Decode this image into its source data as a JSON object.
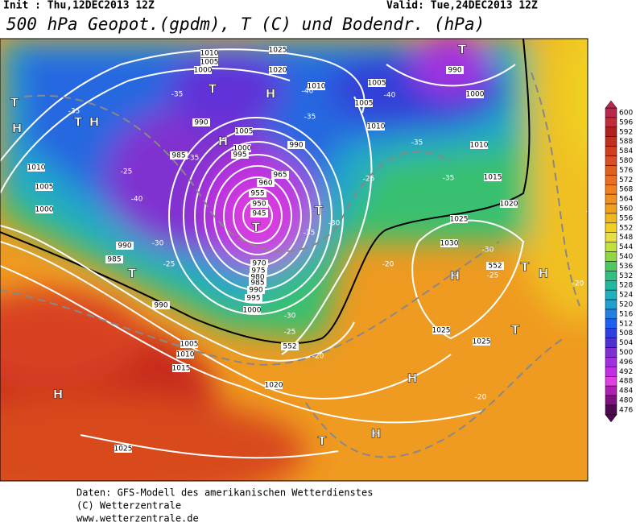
{
  "header": {
    "init": "Init : Thu,12DEC2013 12Z",
    "valid": "Valid: Tue,24DEC2013 12Z",
    "title": "500 hPa Geopot.(gpdm), T (C) und Bodendr. (hPa)"
  },
  "colorbar": {
    "labels": [
      600,
      596,
      592,
      588,
      584,
      580,
      576,
      572,
      568,
      564,
      560,
      556,
      552,
      548,
      544,
      540,
      536,
      532,
      528,
      524,
      520,
      516,
      512,
      508,
      504,
      500,
      496,
      492,
      488,
      484,
      480,
      476
    ],
    "colors": [
      "#b8284c",
      "#c02c3c",
      "#b02020",
      "#c03020",
      "#d04020",
      "#d85028",
      "#e06020",
      "#e87020",
      "#f08020",
      "#f09020",
      "#f0a020",
      "#f0b820",
      "#f0d020",
      "#e8e040",
      "#c0e040",
      "#90d840",
      "#50c860",
      "#30c080",
      "#20b8a0",
      "#20b0c0",
      "#20a0d0",
      "#2080e0",
      "#2060f0",
      "#3040e0",
      "#5030d0",
      "#8030d0",
      "#a030e0",
      "#c030e0",
      "#e040e0",
      "#b020b0",
      "#801080",
      "#500850"
    ]
  },
  "map": {
    "isobar_labels": [
      "1025",
      "1020",
      "1010",
      "1005",
      "1005",
      "1010",
      "1000",
      "990",
      "1010",
      "1015",
      "1020",
      "1025",
      "1030",
      "1025",
      "1025",
      "1020",
      "1015",
      "1010",
      "1005",
      "1000",
      "995",
      "990",
      "985",
      "990",
      "1000",
      "1005",
      "1010",
      "985",
      "990",
      "1005",
      "1000",
      "995",
      "960",
      "955",
      "950",
      "945",
      "965",
      "990",
      "970",
      "975",
      "980",
      "985",
      "990",
      "1025",
      "1010",
      "1005",
      "1000",
      "552",
      "552"
    ],
    "temperature_labels": [
      "-35",
      "-35",
      "-40",
      "-40",
      "-35",
      "-25",
      "-40",
      "-35",
      "-25",
      "-30",
      "-35",
      "-30",
      "-25",
      "-20",
      "-30",
      "-25",
      "-20",
      "-35",
      "-35",
      "-30",
      "-25",
      "-25",
      "-20",
      "-20"
    ],
    "pressure_centers": [
      "T",
      "H",
      "T",
      "H",
      "T",
      "T",
      "H",
      "H",
      "T",
      "T",
      "T",
      "H",
      "T",
      "H",
      "T",
      "H",
      "H",
      "T",
      "H"
    ]
  },
  "footer": [
    "Daten: GFS-Modell des amerikanischen Wetterdienstes",
    "(C) Wetterzentrale",
    "www.wetterzentrale.de"
  ]
}
